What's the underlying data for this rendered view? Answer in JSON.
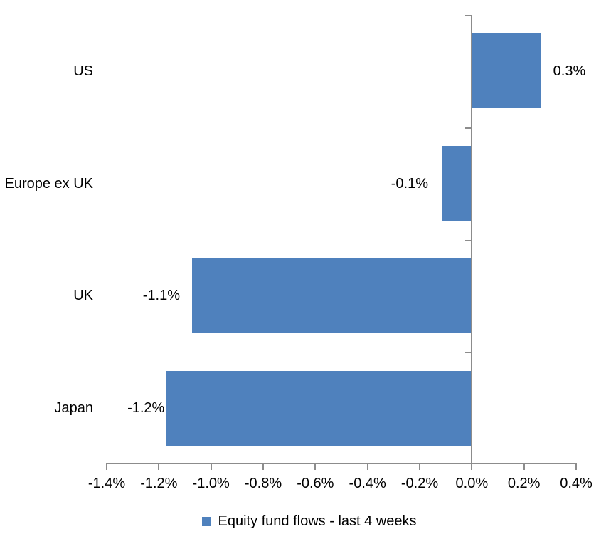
{
  "chart_data": {
    "type": "bar",
    "orientation": "horizontal",
    "title": "",
    "xlabel": "",
    "ylabel": "",
    "categories": [
      "US",
      "Europe ex UK",
      "UK",
      "Japan"
    ],
    "series": [
      {
        "name": "Equity fund flows - last 4 weeks",
        "values": [
          0.26,
          -0.11,
          -1.07,
          -1.17
        ],
        "labels": [
          "0.3%",
          "-0.1%",
          "-1.1%",
          "-1.2%"
        ]
      }
    ],
    "x_ticks": [
      "-1.4%",
      "-1.2%",
      "-1.0%",
      "-0.8%",
      "-0.6%",
      "-0.4%",
      "-0.2%",
      "0.0%",
      "0.2%",
      "0.4%"
    ],
    "xlim": [
      -1.4,
      0.4
    ],
    "x_tick_step": 0.2,
    "grid": false,
    "legend_position": "bottom",
    "bar_color": "#4F81BD",
    "axis_color": "#8C8C8C",
    "text_color": "#000000",
    "background_color": "#ffffff"
  }
}
